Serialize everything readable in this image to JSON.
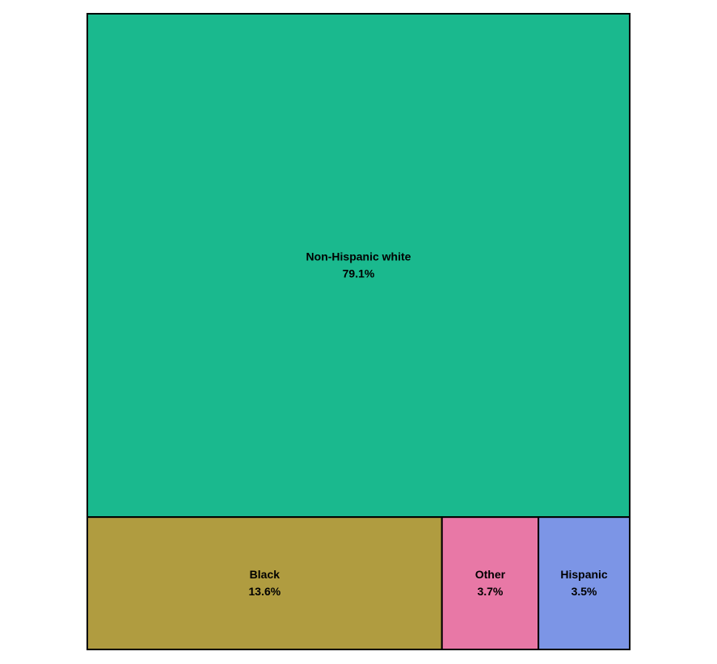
{
  "chart_data": {
    "type": "treemap",
    "title": "",
    "labels": [
      "Non-Hispanic white",
      "Black",
      "Other",
      "Hispanic"
    ],
    "values": [
      79.1,
      13.6,
      3.7,
      3.5
    ],
    "value_labels": [
      "79.1%",
      "13.6%",
      "3.7%",
      "3.5%"
    ],
    "colors": [
      "#1ab98e",
      "#b09c40",
      "#e878a6",
      "#7c95e6"
    ],
    "legend": "none",
    "grid": false
  }
}
